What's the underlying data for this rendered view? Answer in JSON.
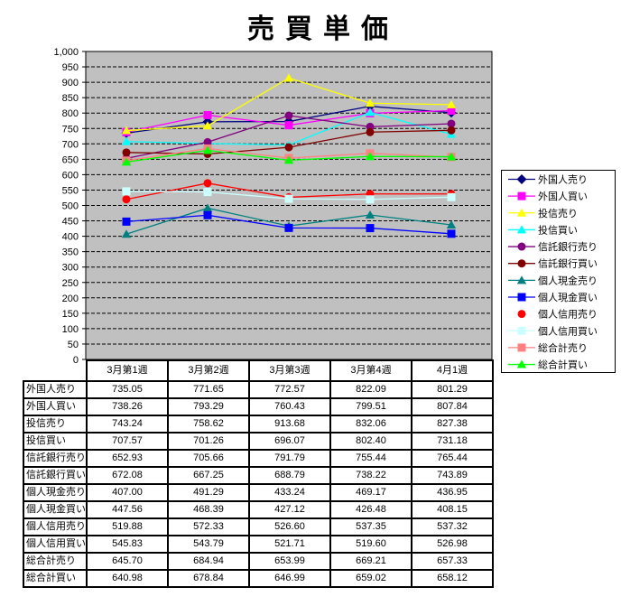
{
  "chart_data": {
    "type": "line",
    "title": "売買単価",
    "categories": [
      "3月第1週",
      "3月第2週",
      "3月第3週",
      "3月第4週",
      "4月1週"
    ],
    "y_axis": {
      "min": 0,
      "max": 1000,
      "step": 50,
      "tick_labels": [
        "0",
        "50",
        "100",
        "150",
        "200",
        "250",
        "300",
        "350",
        "400",
        "450",
        "500",
        "550",
        "600",
        "650",
        "700",
        "750",
        "800",
        "850",
        "900",
        "950",
        "1,000"
      ]
    },
    "grid": true,
    "gridline_style": "dashed",
    "gridline_color": "#000000",
    "plot_background": "#C0C0C0",
    "legend_position": "right",
    "series": [
      {
        "name": "外国人売り",
        "color": "#000080",
        "marker": "diamond",
        "legend_line": true,
        "values": [
          735.05,
          771.65,
          772.57,
          822.09,
          801.29
        ]
      },
      {
        "name": "外国人買い",
        "color": "#FF00FF",
        "marker": "square",
        "legend_line": true,
        "values": [
          738.26,
          793.29,
          760.43,
          799.51,
          807.84
        ]
      },
      {
        "name": "投信売り",
        "color": "#FFFF00",
        "marker": "triangle",
        "legend_line": true,
        "values": [
          743.24,
          758.62,
          913.68,
          832.06,
          827.38
        ]
      },
      {
        "name": "投信買い",
        "color": "#00FFFF",
        "marker": "triangle",
        "legend_line": true,
        "values": [
          707.57,
          701.26,
          696.07,
          802.4,
          731.18
        ]
      },
      {
        "name": "信託銀行売り",
        "color": "#800080",
        "marker": "circle",
        "legend_line": true,
        "values": [
          652.93,
          705.66,
          791.79,
          755.44,
          765.44
        ]
      },
      {
        "name": "信託銀行買い",
        "color": "#800000",
        "marker": "circle",
        "legend_line": true,
        "values": [
          672.08,
          667.25,
          688.79,
          738.22,
          743.89
        ]
      },
      {
        "name": "個人現金売り",
        "color": "#008080",
        "marker": "triangle",
        "legend_line": true,
        "values": [
          407.0,
          491.29,
          433.24,
          469.17,
          436.95
        ]
      },
      {
        "name": "個人現金買い",
        "color": "#0000FF",
        "marker": "square",
        "legend_line": true,
        "values": [
          447.56,
          468.39,
          427.12,
          426.48,
          408.15
        ]
      },
      {
        "name": "個人信用売り",
        "color": "#FF0000",
        "marker": "circle",
        "legend_line": false,
        "values": [
          519.88,
          572.33,
          526.6,
          537.35,
          537.32
        ]
      },
      {
        "name": "個人信用買い",
        "color": "#CCFFFF",
        "marker": "square",
        "legend_line": true,
        "values": [
          545.83,
          543.79,
          521.71,
          519.6,
          526.98
        ]
      },
      {
        "name": "総合計売り",
        "color": "#FF8080",
        "marker": "square",
        "legend_line": true,
        "values": [
          645.7,
          684.94,
          653.99,
          669.21,
          657.33
        ]
      },
      {
        "name": "総合計買い",
        "color": "#00FF00",
        "marker": "triangle",
        "legend_line": true,
        "values": [
          640.98,
          678.84,
          646.99,
          659.02,
          658.12
        ]
      }
    ]
  },
  "table": {
    "header": [
      "3月第1週",
      "3月第2週",
      "3月第3週",
      "3月第4週",
      "4月1週"
    ],
    "rows": [
      {
        "label": "外国人売り",
        "values": [
          "735.05",
          "771.65",
          "772.57",
          "822.09",
          "801.29"
        ]
      },
      {
        "label": "外国人買い",
        "values": [
          "738.26",
          "793.29",
          "760.43",
          "799.51",
          "807.84"
        ]
      },
      {
        "label": "投信売り",
        "values": [
          "743.24",
          "758.62",
          "913.68",
          "832.06",
          "827.38"
        ]
      },
      {
        "label": "投信買い",
        "values": [
          "707.57",
          "701.26",
          "696.07",
          "802.40",
          "731.18"
        ]
      },
      {
        "label": "信託銀行売り",
        "values": [
          "652.93",
          "705.66",
          "791.79",
          "755.44",
          "765.44"
        ]
      },
      {
        "label": "信託銀行買い",
        "values": [
          "672.08",
          "667.25",
          "688.79",
          "738.22",
          "743.89"
        ]
      },
      {
        "label": "個人現金売り",
        "values": [
          "407.00",
          "491.29",
          "433.24",
          "469.17",
          "436.95"
        ]
      },
      {
        "label": "個人現金買い",
        "values": [
          "447.56",
          "468.39",
          "427.12",
          "426.48",
          "408.15"
        ]
      },
      {
        "label": "個人信用売り",
        "values": [
          "519.88",
          "572.33",
          "526.60",
          "537.35",
          "537.32"
        ]
      },
      {
        "label": "個人信用買い",
        "values": [
          "545.83",
          "543.79",
          "521.71",
          "519.60",
          "526.98"
        ]
      },
      {
        "label": "総合計売り",
        "values": [
          "645.70",
          "684.94",
          "653.99",
          "669.21",
          "657.33"
        ]
      },
      {
        "label": "総合計買い",
        "values": [
          "640.98",
          "678.84",
          "646.99",
          "659.02",
          "658.12"
        ]
      }
    ]
  }
}
